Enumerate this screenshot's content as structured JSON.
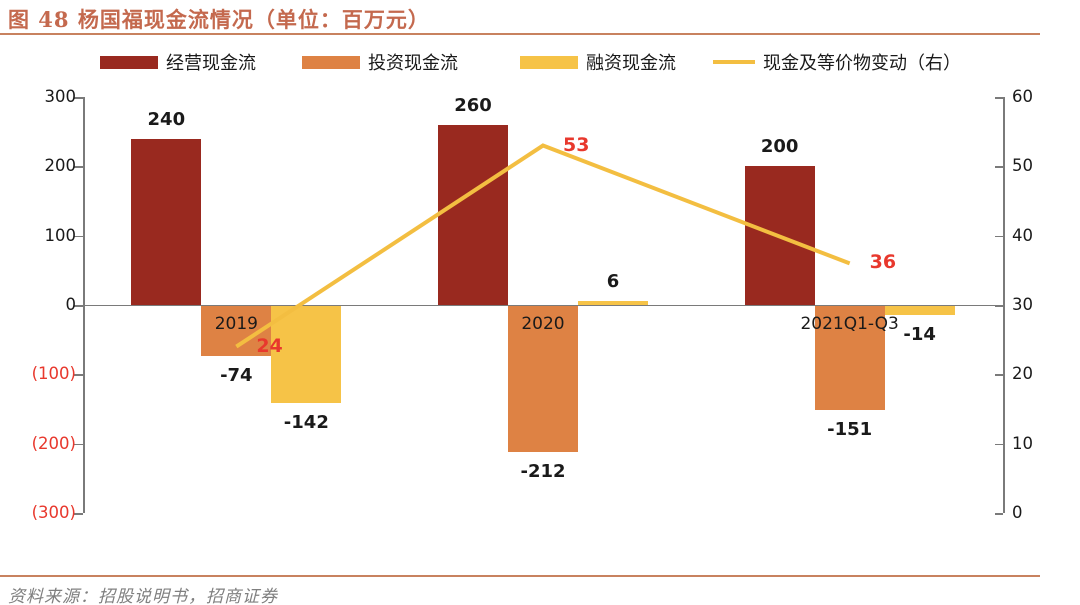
{
  "title": {
    "text": "图 48 杨国福现金流情况（单位：百万元）"
  },
  "legend": {
    "items": [
      {
        "label": "经营现金流",
        "swatch": "rect",
        "color": "#99291F"
      },
      {
        "label": "投资现金流",
        "swatch": "rect",
        "color": "#DE8244"
      },
      {
        "label": "融资现金流",
        "swatch": "rect",
        "color": "#F6C347"
      },
      {
        "label": "现金及等价物变动（右）",
        "swatch": "line",
        "color": "#F3BE41"
      }
    ]
  },
  "footer": {
    "source": "资料来源：招股说明书，招商证券"
  },
  "colors": {
    "accent": "#C4694E",
    "rule": "#C8825F",
    "axis": "#7A7A7A",
    "negative": "#E8382D",
    "bar_label": "#1A1A1A",
    "source_text": "#7F7F7F"
  },
  "chart_data": {
    "type": "bar",
    "subtype": "grouped bars with overlay line on secondary axis",
    "title": "杨国福现金流情况（单位：百万元）",
    "categories": [
      "2019",
      "2020",
      "2021Q1-Q3"
    ],
    "series": [
      {
        "name": "经营现金流",
        "type": "bar",
        "axis": "left",
        "color": "#99291F",
        "values": [
          240,
          260,
          200
        ]
      },
      {
        "name": "投资现金流",
        "type": "bar",
        "axis": "left",
        "color": "#DE8244",
        "values": [
          -74,
          -212,
          -151
        ]
      },
      {
        "name": "融资现金流",
        "type": "bar",
        "axis": "left",
        "color": "#F6C347",
        "values": [
          -142,
          6,
          -14
        ]
      },
      {
        "name": "现金及等价物变动（右）",
        "type": "line",
        "axis": "right",
        "color": "#F3BE41",
        "values": [
          24,
          53,
          36
        ]
      }
    ],
    "left_axis": {
      "range": [
        -300,
        300
      ],
      "values": [
        300,
        200,
        100,
        0,
        -100,
        -200,
        -300
      ],
      "ticks": [
        "300",
        "200",
        "100",
        "0",
        "(100)",
        "(200)",
        "(300)"
      ]
    },
    "right_axis": {
      "range": [
        0,
        60
      ],
      "values": [
        60,
        50,
        40,
        30,
        20,
        10,
        0
      ],
      "ticks": [
        "60",
        "50",
        "40",
        "30",
        "20",
        "10",
        "0"
      ]
    },
    "grid": "off",
    "legend_position": "top",
    "line_label_color": "#E8382D",
    "data_labels": "on"
  }
}
